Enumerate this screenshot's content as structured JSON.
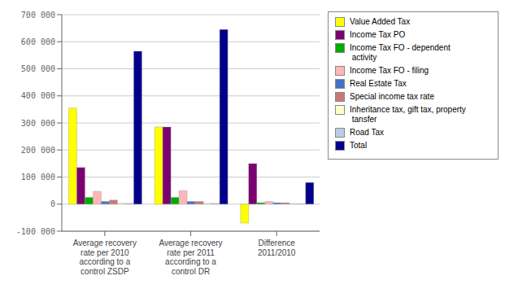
{
  "chart_data": {
    "type": "bar",
    "categories": [
      "Average recovery\nrate per 2010\naccording to a\ncontrol ZSDP",
      "Average recovery\nrate per 2011\naccording to a\ncontrol DR",
      "Difference\n2011/2010"
    ],
    "series": [
      {
        "name": "Value Added Tax",
        "color": "#FFFF00",
        "values": [
          355000,
          285000,
          -70000
        ]
      },
      {
        "name": "Income Tax PO",
        "color": "#7B0070",
        "values": [
          135000,
          285000,
          150000
        ]
      },
      {
        "name": "Income Tax FO - dependent\n activity",
        "color": "#00AA00",
        "values": [
          25000,
          25000,
          5000
        ]
      },
      {
        "name": "Income Tax FO - filing",
        "color": "#FFB6B6",
        "values": [
          47000,
          50000,
          10000
        ]
      },
      {
        "name": "Real Estate Tax",
        "color": "#4472C4",
        "values": [
          10000,
          10000,
          5000
        ]
      },
      {
        "name": "Special income tax rate",
        "color": "#CC7777",
        "values": [
          15000,
          10000,
          5000
        ]
      },
      {
        "name": "Inheritance tax, gift tax, property\n tansfer",
        "color": "#FFFFCC",
        "values": [
          3000,
          3000,
          1000
        ]
      },
      {
        "name": "Road Tax",
        "color": "#B8CCE4",
        "values": [
          3000,
          3000,
          1000
        ]
      },
      {
        "name": "Total",
        "color": "#00008B",
        "values": [
          565000,
          645000,
          80000
        ]
      }
    ],
    "ylim": [
      -100000,
      700000
    ],
    "yticks": [
      {
        "value": -100000,
        "label": "-100 000"
      },
      0,
      {
        "value": 100000,
        "label": "100 000"
      },
      {
        "value": 200000,
        "label": "200 000"
      },
      {
        "value": 300000,
        "label": "300 000"
      },
      {
        "value": 400000,
        "label": "400 000"
      },
      {
        "value": 500000,
        "label": "500 000"
      },
      {
        "value": 600000,
        "label": "600 000"
      },
      {
        "value": 700000,
        "label": "700 000"
      }
    ],
    "grid": true,
    "legend": "right"
  }
}
